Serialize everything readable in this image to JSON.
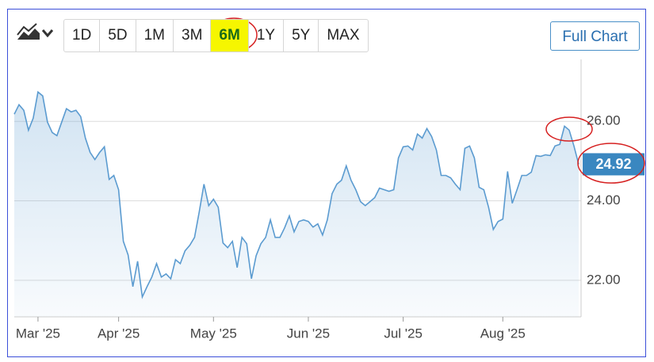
{
  "toolbar": {
    "ranges": [
      "1D",
      "5D",
      "1M",
      "3M",
      "6M",
      "1Y",
      "5Y",
      "MAX"
    ],
    "selected": "6M",
    "full_chart": "Full Chart"
  },
  "chart_data": {
    "type": "area",
    "color": "#5b9bd0",
    "grid": true,
    "xlim": [
      0,
      119
    ],
    "xticks": [
      {
        "value": 5,
        "label": "Mar '25"
      },
      {
        "value": 22,
        "label": "Apr '25"
      },
      {
        "value": 42,
        "label": "May '25"
      },
      {
        "value": 62,
        "label": "Jun '25"
      },
      {
        "value": 82,
        "label": "Jul '25"
      },
      {
        "value": 103,
        "label": "Aug '25"
      }
    ],
    "ylim": [
      21.08,
      27.56
    ],
    "yticks": [
      {
        "value": 22,
        "label": "22.00"
      },
      {
        "value": 24,
        "label": "24.00"
      },
      {
        "value": 26,
        "label": "26.00"
      }
    ],
    "last_price": 24.92,
    "values": [
      26.18,
      26.42,
      26.28,
      25.78,
      26.08,
      26.74,
      26.64,
      25.98,
      25.72,
      25.64,
      25.98,
      26.32,
      26.24,
      26.28,
      26.12,
      25.58,
      25.22,
      25.04,
      25.22,
      25.36,
      24.54,
      24.64,
      24.28,
      22.98,
      22.64,
      21.84,
      22.48,
      21.58,
      21.84,
      22.08,
      22.42,
      22.08,
      22.16,
      22.04,
      22.52,
      22.42,
      22.74,
      22.88,
      23.08,
      23.72,
      24.42,
      23.88,
      24.04,
      23.84,
      22.94,
      22.82,
      22.98,
      22.32,
      23.08,
      22.92,
      22.04,
      22.62,
      22.92,
      23.08,
      23.52,
      23.08,
      23.08,
      23.32,
      23.62,
      23.22,
      23.48,
      23.52,
      23.48,
      23.34,
      23.42,
      23.14,
      23.52,
      24.18,
      24.42,
      24.52,
      24.88,
      24.52,
      24.28,
      23.98,
      23.88,
      23.98,
      24.08,
      24.32,
      24.28,
      24.24,
      24.28,
      25.08,
      25.36,
      25.38,
      25.28,
      25.68,
      25.58,
      25.82,
      25.62,
      25.28,
      24.64,
      24.64,
      24.58,
      24.42,
      24.28,
      25.32,
      25.38,
      25.08,
      24.34,
      24.28,
      23.84,
      23.28,
      23.48,
      23.54,
      24.74,
      23.94,
      24.28,
      24.64,
      24.64,
      24.72,
      25.14,
      25.12,
      25.16,
      25.14,
      25.38,
      25.42,
      25.88,
      25.78,
      25.38,
      24.92
    ]
  }
}
